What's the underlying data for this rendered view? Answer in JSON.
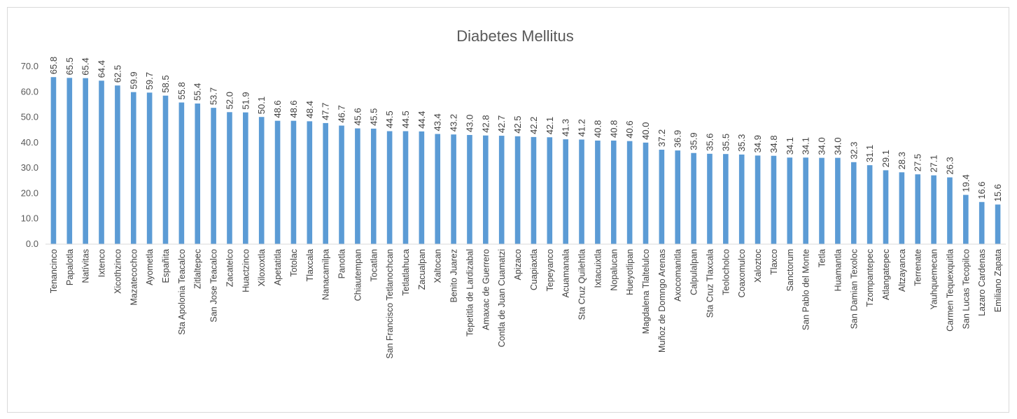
{
  "chart_data": {
    "type": "bar",
    "title": "Diabetes Mellitus",
    "xlabel": "",
    "ylabel": "",
    "ylim": [
      0,
      70
    ],
    "y_ticks": [
      "0.0",
      "10.0",
      "20.0",
      "30.0",
      "40.0",
      "50.0",
      "60.0",
      "70.0"
    ],
    "grid": false,
    "legend": "none",
    "bar_color": "#5b9bd5",
    "categories": [
      "Tenancinco",
      "Papalotla",
      "Natívitas",
      "Ixtenco",
      "Xicothzinco",
      "Mazatecochco",
      "Ayometla",
      "Españita",
      "Sta Apolonia Teacalco",
      "Zitlaltepec",
      "San Jose Teacalco",
      "Zacatelco",
      "Huactzinco",
      "Xiloxoxtla",
      "Apetatitla",
      "Totolac",
      "Tlaxcala",
      "Nanacamilpa",
      "Panotla",
      "Chiautempan",
      "Tocatlan",
      "San Francisco Tetlanochcan",
      "Tetlatlahuca",
      "Zacualpan",
      "Xaltocan",
      "Benito Juarez",
      "Tepetitla de Lardizabal",
      "Amaxac de Guerrero",
      "Contla de Juan Cuamatzi",
      "Apizaco",
      "Cuapiaxtla",
      "Tepeyanco",
      "Acuamanala",
      "Sta Cruz Quilehtla",
      "Ixtacuixtla",
      "Nopalucan",
      "Hueyotlipan",
      "Magdalena Tlaltelulco",
      "Muñoz de Domngo Arenas",
      "Axocomanitla",
      "Calpulalpan",
      "Sta Cruz Tlaxcala",
      "Teolocholco",
      "Coaxomulco",
      "Xaloztoc",
      "Tlaxco",
      "Sanctorum",
      "San Pablo del Monte",
      "Tetla",
      "Huamantla",
      "San Damian Texoloc",
      "Tzompantepec",
      "Atlangatepec",
      "Altzayanca",
      "Terrenate",
      "Yauhquemecan",
      "Carmen Tequexquitla",
      "San Lucas Tecopilco",
      "Lazaro Cardenas",
      "Emiliano Zapata"
    ],
    "values": [
      65.8,
      65.5,
      65.4,
      64.4,
      62.5,
      59.9,
      59.7,
      58.5,
      55.8,
      55.4,
      53.7,
      52.0,
      51.9,
      50.1,
      48.6,
      48.6,
      48.4,
      47.7,
      46.7,
      45.6,
      45.5,
      44.5,
      44.5,
      44.4,
      43.4,
      43.2,
      43.0,
      42.8,
      42.7,
      42.5,
      42.2,
      42.1,
      41.3,
      41.2,
      40.8,
      40.8,
      40.6,
      40.0,
      37.2,
      36.9,
      35.9,
      35.6,
      35.5,
      35.3,
      34.9,
      34.8,
      34.1,
      34.1,
      34.0,
      34.0,
      32.3,
      31.1,
      29.1,
      28.3,
      27.5,
      27.1,
      26.3,
      19.4,
      16.6,
      15.6
    ],
    "data_labels": [
      "65.8",
      "65.5",
      "65.4",
      "64.4",
      "62.5",
      "59.9",
      "59.7",
      "58.5",
      "55.8",
      "55.4",
      "53.7",
      "52.0",
      "51.9",
      "50.1",
      "48.6",
      "48.6",
      "48.4",
      "47.7",
      "46.7",
      "45.6",
      "45.5",
      "44.5",
      "44.5",
      "44.4",
      "43.4",
      "43.2",
      "43.0",
      "42.8",
      "42.7",
      "42.5",
      "42.2",
      "42.1",
      "41.3",
      "41.2",
      "40.8",
      "40.8",
      "40.6",
      "40.0",
      "37.2",
      "36.9",
      "35.9",
      "35.6",
      "35.5",
      "35.3",
      "34.9",
      "34.8",
      "34.1",
      "34.1",
      "34.0",
      "34.0",
      "32.3",
      "31.1",
      "29.1",
      "28.3",
      "27.5",
      "27.1",
      "26.3",
      "19.4",
      "16.6",
      "15.6"
    ]
  }
}
